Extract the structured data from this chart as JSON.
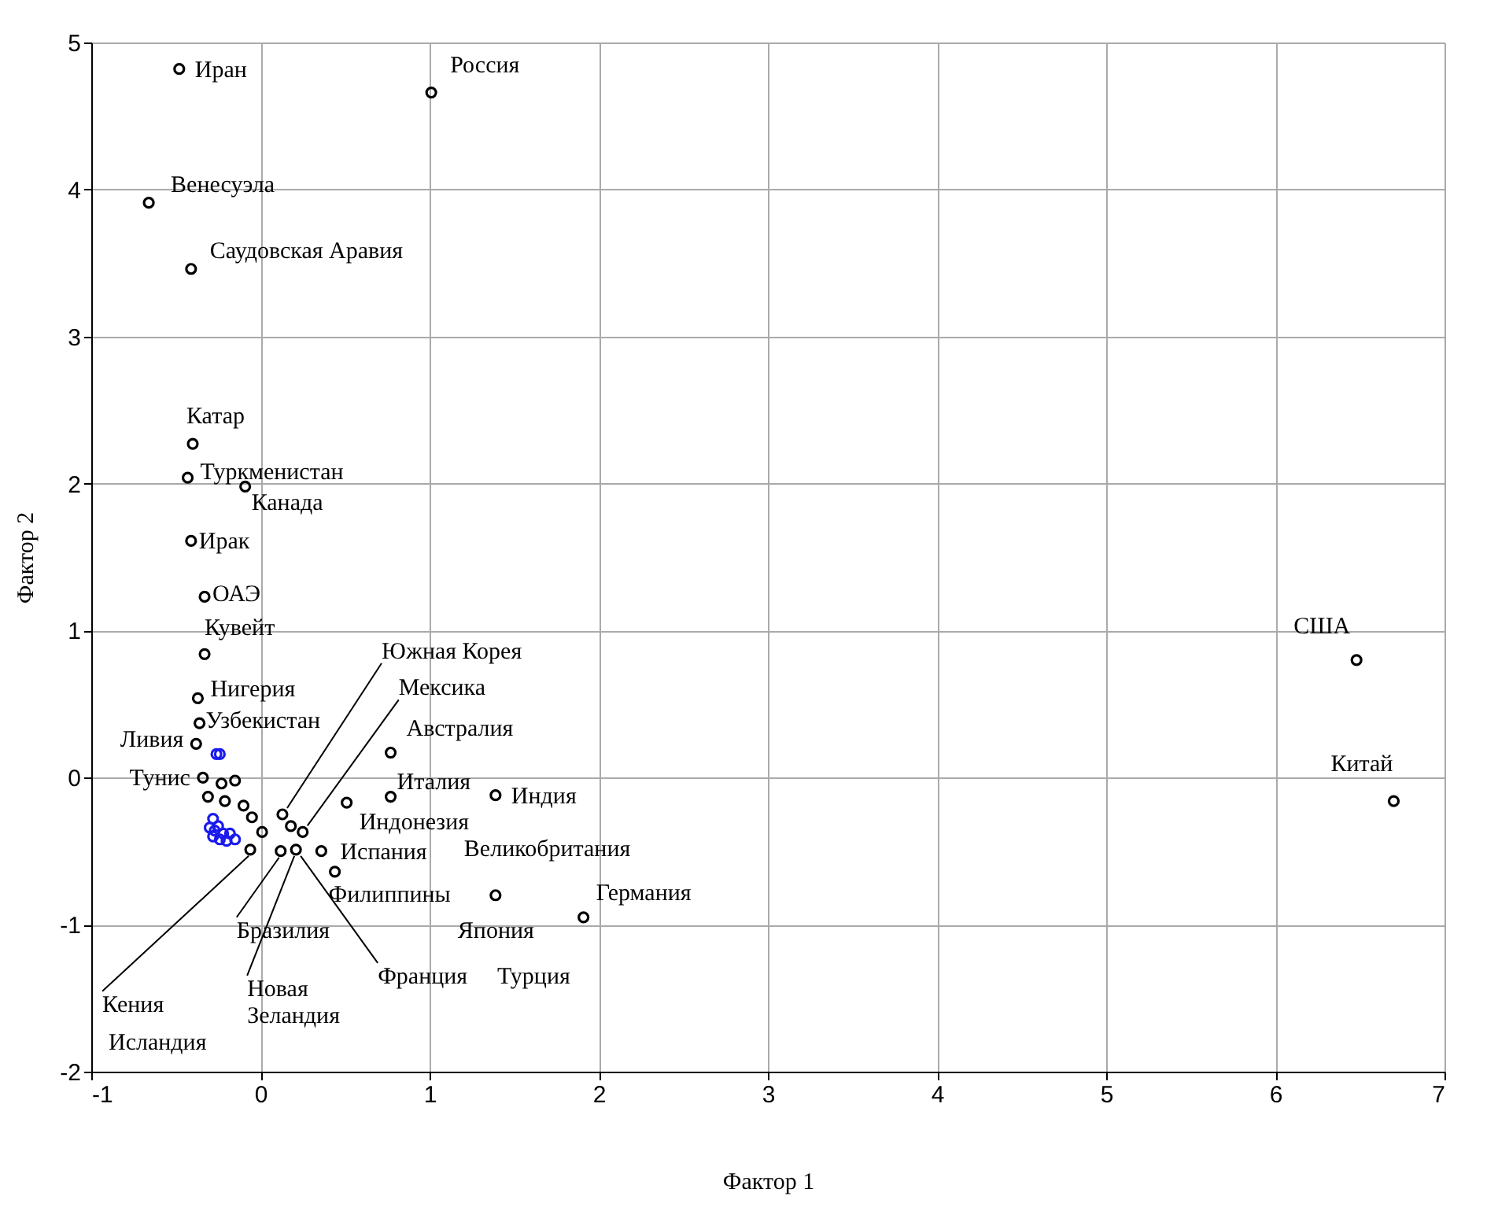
{
  "chart_data": {
    "type": "scatter",
    "xlabel": "Фактор 1",
    "ylabel": "Фактор 2",
    "xlim": [
      -1,
      7
    ],
    "ylim": [
      -2,
      5
    ],
    "xticks": [
      -1,
      0,
      1,
      2,
      3,
      4,
      5,
      6,
      7
    ],
    "yticks": [
      -2,
      -1,
      0,
      1,
      2,
      3,
      4,
      5
    ],
    "grid": true,
    "marker": "circle",
    "series": [
      {
        "color": "#000000",
        "x": [
          -0.48,
          1.01,
          -0.66,
          -0.41,
          -0.4,
          -0.43,
          -0.09,
          -0.41,
          -0.33,
          -0.33,
          -0.37,
          -0.36,
          -0.38,
          -0.34,
          -0.23,
          -0.15,
          -0.31,
          -0.21,
          -0.1,
          -0.05,
          0.01,
          -0.06,
          0.13,
          0.18,
          0.25,
          0.12,
          0.21,
          0.36,
          0.77,
          0.77,
          1.39,
          0.51,
          0.44,
          1.39,
          1.91,
          6.48,
          6.7
        ],
        "values": [
          4.82,
          4.66,
          3.91,
          3.46,
          2.27,
          2.04,
          1.98,
          1.61,
          1.23,
          0.84,
          0.54,
          0.37,
          0.23,
          0.0,
          -0.04,
          -0.02,
          -0.13,
          -0.16,
          -0.19,
          -0.27,
          -0.37,
          -0.49,
          -0.25,
          -0.33,
          -0.37,
          -0.5,
          -0.49,
          -0.5,
          0.17,
          -0.13,
          -0.12,
          -0.17,
          -0.64,
          -0.8,
          -0.95,
          0.8,
          -0.16
        ]
      },
      {
        "color": "#1a1aee",
        "x": [
          -0.26,
          -0.24,
          -0.28,
          -0.25,
          -0.22,
          -0.28,
          -0.18,
          -0.15,
          -0.2,
          -0.27,
          -0.24,
          -0.3
        ],
        "values": [
          0.16,
          0.16,
          -0.28,
          -0.33,
          -0.38,
          -0.4,
          -0.38,
          -0.42,
          -0.43,
          -0.36,
          -0.42,
          -0.34
        ]
      }
    ],
    "annotations": [
      {
        "text": "Иран",
        "x": -0.48,
        "y": 4.82
      },
      {
        "text": "Россия",
        "x": 1.01,
        "y": 4.66
      },
      {
        "text": "Венесуэла",
        "x": -0.66,
        "y": 3.91
      },
      {
        "text": "Саудовская Аравия",
        "x": -0.41,
        "y": 3.46
      },
      {
        "text": "Катар",
        "x": -0.4,
        "y": 2.27
      },
      {
        "text": "Туркменистан",
        "x": -0.43,
        "y": 2.04
      },
      {
        "text": "Канада",
        "x": -0.09,
        "y": 1.98
      },
      {
        "text": "Ирак",
        "x": -0.41,
        "y": 1.61
      },
      {
        "text": "ОАЭ",
        "x": -0.33,
        "y": 1.23
      },
      {
        "text": "Кувейт",
        "x": -0.33,
        "y": 0.84
      },
      {
        "text": "Нигерия",
        "x": -0.37,
        "y": 0.54
      },
      {
        "text": "Узбекистан",
        "x": -0.36,
        "y": 0.37
      },
      {
        "text": "Ливия",
        "x": -0.38,
        "y": 0.23
      },
      {
        "text": "Тунис",
        "x": -0.34,
        "y": 0.0
      },
      {
        "text": "Южная Корея",
        "x": 0.13,
        "y": -0.25
      },
      {
        "text": "Мексика",
        "x": 0.25,
        "y": -0.37
      },
      {
        "text": "Австралия",
        "x": 0.77,
        "y": 0.17
      },
      {
        "text": "Италия",
        "x": 0.77,
        "y": -0.13
      },
      {
        "text": "Индия",
        "x": 1.39,
        "y": -0.12
      },
      {
        "text": "Индонезия",
        "x": 0.51,
        "y": -0.17
      },
      {
        "text": "Испания",
        "x": 0.36,
        "y": -0.5
      },
      {
        "text": "Великобритания",
        "x": 1.39,
        "y": -0.8
      },
      {
        "text": "Германия",
        "x": 1.91,
        "y": -0.95
      },
      {
        "text": "Филиппины",
        "x": 0.44,
        "y": -0.64
      },
      {
        "text": "Япония",
        "x": 1.39,
        "y": -0.8
      },
      {
        "text": "Бразилия",
        "x": 0.12,
        "y": -0.5
      },
      {
        "text": "Новая\nЗеландия",
        "x": 0.21,
        "y": -0.49
      },
      {
        "text": "Франция",
        "x": 0.21,
        "y": -0.49
      },
      "Турция",
      {
        "text": "Кения",
        "x": -0.06,
        "y": -0.49
      },
      "Исландия",
      {
        "text": "США",
        "x": 6.48,
        "y": 0.8
      },
      {
        "text": "Китай",
        "x": 6.7,
        "y": -0.16
      }
    ]
  }
}
